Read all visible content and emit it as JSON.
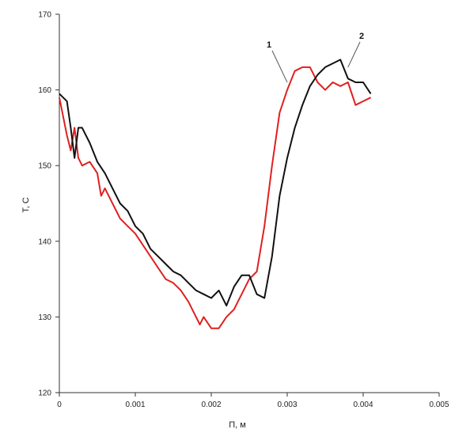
{
  "chart_data": {
    "type": "line",
    "title": "",
    "xlabel": "П, м",
    "ylabel": "T, C",
    "xlim": [
      0,
      0.005
    ],
    "ylim": [
      120,
      170
    ],
    "x_ticks": [
      "0",
      "0.001",
      "0.002",
      "0.003",
      "0.004",
      "0.005"
    ],
    "y_ticks": [
      "120",
      "130",
      "140",
      "150",
      "160",
      "170"
    ],
    "grid": false,
    "legend": "none",
    "series": [
      {
        "name": "1",
        "color": "#e02020",
        "x": [
          0,
          0.0001,
          0.00015,
          0.0002,
          0.00025,
          0.0003,
          0.0004,
          0.0005,
          0.00055,
          0.0006,
          0.0007,
          0.0008,
          0.0009,
          0.001,
          0.0011,
          0.0012,
          0.0013,
          0.0014,
          0.0015,
          0.0016,
          0.0017,
          0.0018,
          0.00185,
          0.0019,
          0.002,
          0.0021,
          0.0022,
          0.0023,
          0.0024,
          0.0025,
          0.0026,
          0.0027,
          0.0028,
          0.0029,
          0.003,
          0.0031,
          0.0032,
          0.0033,
          0.0034,
          0.0035,
          0.0036,
          0.0037,
          0.0038,
          0.0039,
          0.004,
          0.0041
        ],
        "y": [
          159,
          154,
          152,
          155,
          151,
          150,
          150.5,
          149,
          146,
          147,
          145,
          143,
          142,
          141,
          139.5,
          138,
          136.5,
          135,
          134.5,
          133.5,
          132,
          130,
          129,
          130,
          128.5,
          128.5,
          130,
          131,
          133,
          135,
          136,
          142,
          150,
          157,
          160,
          162.5,
          163,
          163,
          161,
          160,
          161,
          160.5,
          161,
          158,
          158.5,
          159
        ]
      },
      {
        "name": "2",
        "color": "#111111",
        "x": [
          0,
          0.0001,
          0.00015,
          0.0002,
          0.00025,
          0.0003,
          0.0004,
          0.0005,
          0.0006,
          0.0007,
          0.0008,
          0.0009,
          0.001,
          0.0011,
          0.0012,
          0.0013,
          0.0014,
          0.0015,
          0.0016,
          0.0017,
          0.0018,
          0.0019,
          0.002,
          0.0021,
          0.0022,
          0.0023,
          0.0024,
          0.0025,
          0.0026,
          0.0027,
          0.0028,
          0.0029,
          0.003,
          0.0031,
          0.0032,
          0.0033,
          0.0034,
          0.0035,
          0.0036,
          0.0037,
          0.0038,
          0.0039,
          0.004,
          0.0041
        ],
        "y": [
          159.5,
          158.5,
          155,
          151,
          155,
          155,
          153,
          150.5,
          149,
          147,
          145,
          144,
          142,
          141,
          139,
          138,
          137,
          136,
          135.5,
          134.5,
          133.5,
          133,
          132.5,
          133.5,
          131.5,
          134,
          135.5,
          135.5,
          133,
          132.5,
          138,
          146,
          151,
          155,
          158,
          160.5,
          162,
          163,
          163.5,
          164,
          161.5,
          161,
          161,
          159.5
        ]
      }
    ],
    "annotations": [
      {
        "text": "1",
        "series": "1"
      },
      {
        "text": "2",
        "series": "2"
      }
    ]
  }
}
